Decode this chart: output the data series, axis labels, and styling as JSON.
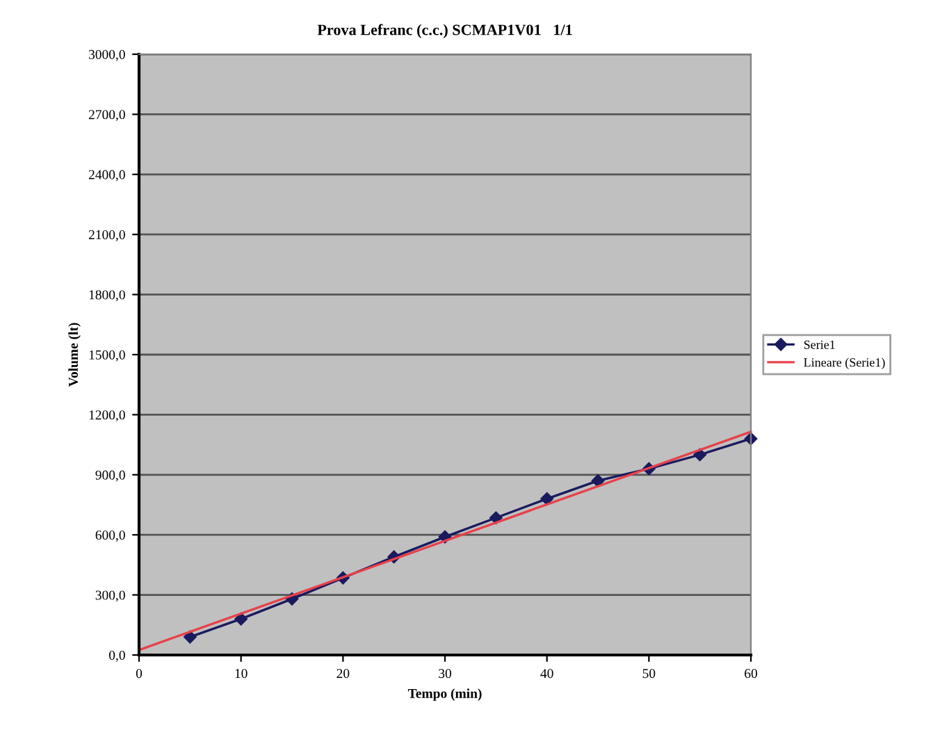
{
  "chart_data": {
    "type": "line",
    "title": "Prova Lefranc (c.c.) SCMAP1V01   1/1",
    "xlabel": "Tempo (min)",
    "ylabel": "Volume (lt)",
    "xlim": [
      0,
      60
    ],
    "xticks": [
      0,
      10,
      20,
      30,
      40,
      50,
      60
    ],
    "ylim": [
      0,
      3000
    ],
    "yticks": [
      {
        "value": 0,
        "label": "0,0"
      },
      {
        "value": 300,
        "label": "300,0"
      },
      {
        "value": 600,
        "label": "600,0"
      },
      {
        "value": 900,
        "label": "900,0"
      },
      {
        "value": 1200,
        "label": "1200,0"
      },
      {
        "value": 1500,
        "label": "1500,0"
      },
      {
        "value": 1800,
        "label": "1800,0"
      },
      {
        "value": 2100,
        "label": "2100,0"
      },
      {
        "value": 2400,
        "label": "2400,0"
      },
      {
        "value": 2700,
        "label": "2700,0"
      },
      {
        "value": 3000,
        "label": "3000,0"
      }
    ],
    "grid": "y",
    "legend": "right",
    "series": [
      {
        "name": "Serie1",
        "color": "#1a1a5e",
        "marker": "diamond",
        "x": [
          5,
          10,
          15,
          20,
          25,
          30,
          35,
          40,
          45,
          50,
          55,
          60
        ],
        "values": [
          90,
          180,
          280,
          385,
          490,
          590,
          685,
          780,
          870,
          930,
          1000,
          1080
        ]
      },
      {
        "name": "Lineare (Serie1)",
        "color": "#e8404a",
        "marker": "none",
        "x": [
          0,
          60
        ],
        "values": [
          25,
          1115
        ]
      }
    ]
  }
}
